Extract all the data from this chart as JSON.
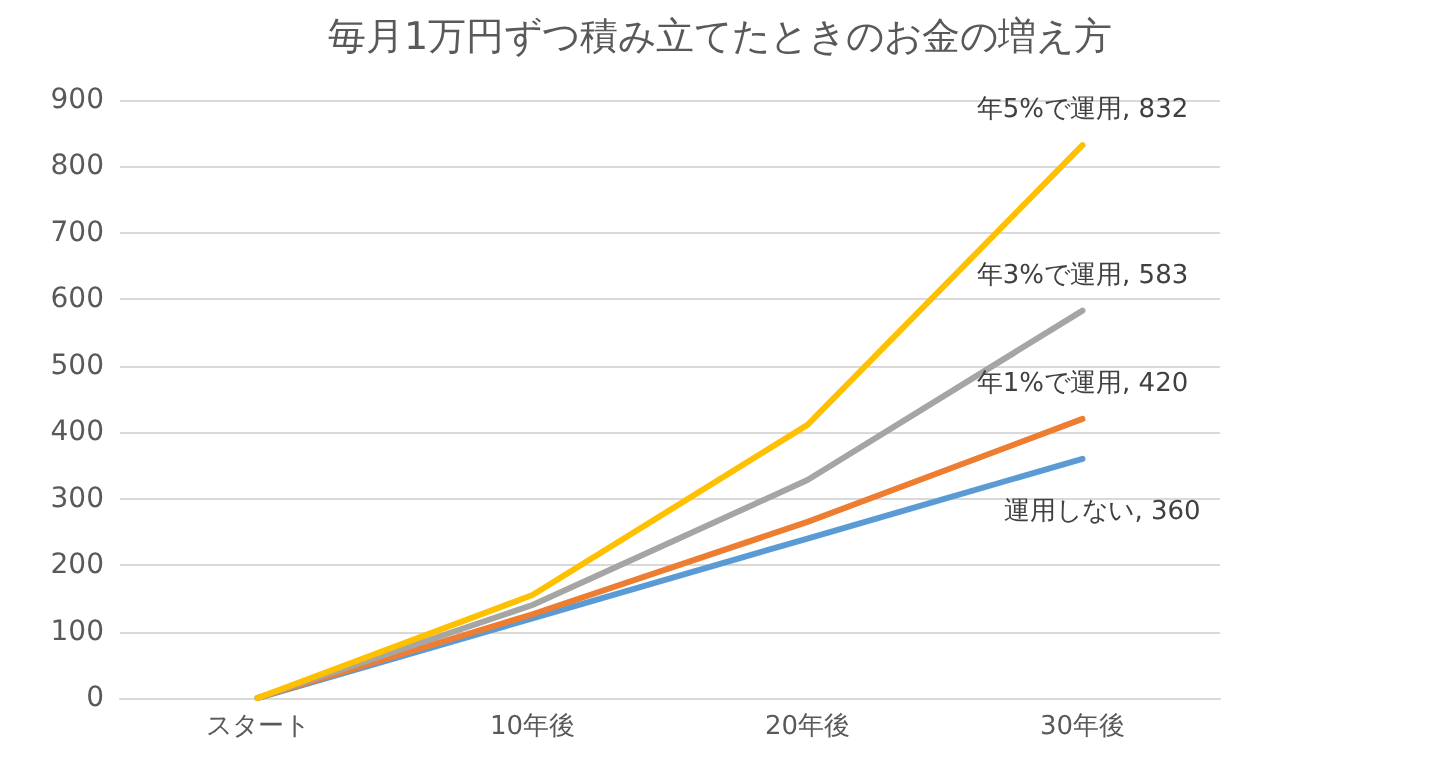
{
  "chart_data": {
    "type": "line",
    "title": "毎月1万円ずつ積み立てたときのお金の増え方",
    "categories": [
      "スタート",
      "10年後",
      "20年後",
      "30年後"
    ],
    "series": [
      {
        "name": "運用しない,",
        "color": "#5b9bd5",
        "values": [
          0,
          120,
          240,
          360
        ],
        "value_labels": [
          null,
          null,
          null,
          "360"
        ]
      },
      {
        "name": "年1%で運用,",
        "color": "#ed7d31",
        "values": [
          0,
          126,
          265,
          420
        ],
        "value_labels": [
          null,
          null,
          null,
          "420"
        ]
      },
      {
        "name": "年3%で運用,",
        "color": "#a5a5a5",
        "values": [
          0,
          140,
          328,
          583
        ],
        "value_labels": [
          null,
          null,
          null,
          "583"
        ]
      },
      {
        "name": "年5%で運用,",
        "color": "#ffc000",
        "values": [
          0,
          155,
          411,
          832
        ],
        "value_labels": [
          null,
          null,
          null,
          "832"
        ]
      }
    ],
    "ylim": [
      0,
      900
    ],
    "yticks": [
      0,
      100,
      200,
      300,
      400,
      500,
      600,
      700,
      800,
      900
    ],
    "grid": "y",
    "legend": false,
    "marker": "none",
    "line_style": "solid"
  }
}
